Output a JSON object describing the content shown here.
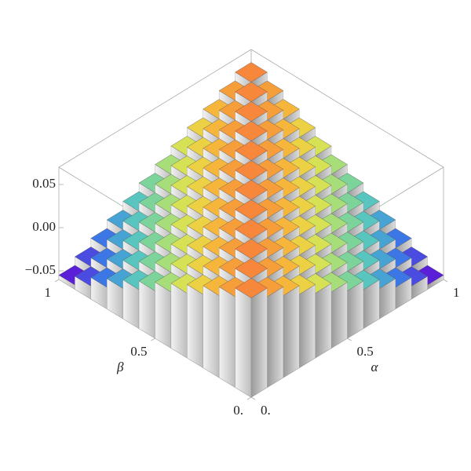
{
  "chart_data": {
    "type": "bar3d",
    "xlabel": "α",
    "ylabel": "β",
    "xlim": [
      0,
      1
    ],
    "ylim": [
      0,
      1
    ],
    "zlim": [
      -0.06,
      0.07
    ],
    "xticks": [
      {
        "value": 0,
        "label": "0."
      },
      0.5,
      1
    ],
    "yticks": [
      {
        "value": 0,
        "label": "0."
      },
      0.5,
      1
    ],
    "zticks": [
      {
        "value": -0.05,
        "label": "−0.05"
      },
      {
        "value": 0,
        "label": "0.00"
      },
      0.05
    ],
    "colormap": [
      "#5a1fd6",
      "#3c6fe8",
      "#4cc0c9",
      "#8fdc8a",
      "#e6e24a",
      "#f6b23a",
      "#f7873a"
    ],
    "values": [
      [
        0.055,
        0.045,
        0.035,
        0.025,
        0.015,
        0.005,
        -0.005,
        -0.015,
        -0.025,
        -0.035,
        -0.045,
        -0.055
      ],
      [
        0.045,
        0.055,
        0.045,
        0.035,
        0.025,
        0.015,
        0.005,
        -0.005,
        -0.015,
        -0.025,
        -0.035,
        -0.045
      ],
      [
        0.035,
        0.045,
        0.055,
        0.045,
        0.035,
        0.025,
        0.015,
        0.005,
        -0.005,
        -0.015,
        -0.025,
        -0.035
      ],
      [
        0.025,
        0.035,
        0.045,
        0.055,
        0.045,
        0.035,
        0.025,
        0.015,
        0.005,
        -0.005,
        -0.015,
        -0.025
      ],
      [
        0.015,
        0.025,
        0.035,
        0.045,
        0.055,
        0.045,
        0.035,
        0.025,
        0.015,
        0.005,
        -0.005,
        -0.015
      ],
      [
        0.005,
        0.015,
        0.025,
        0.035,
        0.045,
        0.055,
        0.045,
        0.035,
        0.025,
        0.015,
        0.005,
        -0.005
      ],
      [
        -0.005,
        0.005,
        0.015,
        0.025,
        0.035,
        0.045,
        0.055,
        0.045,
        0.035,
        0.025,
        0.015,
        0.005
      ],
      [
        -0.015,
        -0.005,
        0.005,
        0.015,
        0.025,
        0.035,
        0.045,
        0.055,
        0.045,
        0.035,
        0.025,
        0.015
      ],
      [
        -0.025,
        -0.015,
        -0.005,
        0.005,
        0.015,
        0.025,
        0.035,
        0.045,
        0.055,
        0.045,
        0.035,
        0.025
      ],
      [
        -0.035,
        -0.025,
        -0.015,
        -0.005,
        0.005,
        0.015,
        0.025,
        0.035,
        0.045,
        0.055,
        0.045,
        0.035
      ],
      [
        -0.045,
        -0.035,
        -0.025,
        -0.015,
        -0.005,
        0.005,
        0.015,
        0.025,
        0.035,
        0.045,
        0.055,
        0.045
      ],
      [
        -0.055,
        -0.045,
        -0.035,
        -0.025,
        -0.015,
        -0.005,
        0.005,
        0.015,
        0.025,
        0.035,
        0.045,
        0.055
      ]
    ]
  }
}
